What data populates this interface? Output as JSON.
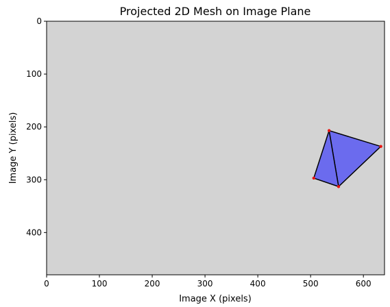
{
  "chart_data": {
    "type": "mesh",
    "title": "Projected 2D Mesh on Image Plane",
    "xlabel": "Image X (pixels)",
    "ylabel": "Image Y (pixels)",
    "xlim": [
      0,
      640
    ],
    "ylim": [
      480,
      0
    ],
    "y_inverted": true,
    "x_ticks": [
      0,
      100,
      200,
      300,
      400,
      500,
      600
    ],
    "y_ticks": [
      0,
      100,
      200,
      300,
      400
    ],
    "x_tick_labels": [
      "0",
      "100",
      "200",
      "300",
      "400",
      "500",
      "600"
    ],
    "y_tick_labels": [
      "0",
      "100",
      "200",
      "300",
      "400"
    ],
    "grid": false,
    "vertices": [
      {
        "x": 535,
        "y": 207
      },
      {
        "x": 633,
        "y": 237
      },
      {
        "x": 553,
        "y": 313
      },
      {
        "x": 506,
        "y": 297
      }
    ],
    "faces": [
      [
        0,
        1,
        2
      ],
      [
        0,
        2,
        3
      ]
    ],
    "colors": {
      "face": "#6b6bee",
      "edge": "#000000",
      "vertex": "#e8130f",
      "background": "#d3d3d3"
    }
  }
}
